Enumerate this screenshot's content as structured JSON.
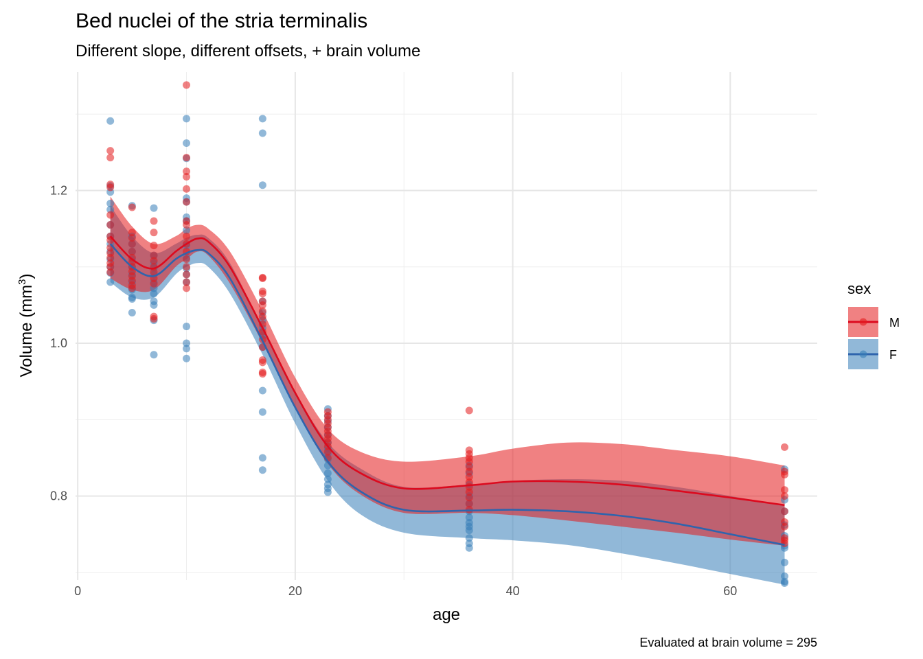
{
  "chart_data": {
    "type": "line",
    "title": "Bed nuclei of the stria terminalis",
    "subtitle": "Different slope, different offsets, + brain volume",
    "caption": "Evaluated at brain volume = 295",
    "xlabel": "age",
    "ylabel_main": "Volume (mm",
    "ylabel_sup": "3",
    "ylabel_end": ")",
    "xlim": [
      -0.2,
      68
    ],
    "ylim": [
      0.69,
      1.355
    ],
    "x_ticks": [
      0,
      20,
      40,
      60
    ],
    "y_ticks": [
      0.8,
      1.0,
      1.2
    ],
    "x_tick_labels": [
      "0",
      "20",
      "40",
      "60"
    ],
    "y_tick_labels": [
      "0.8",
      "1.0",
      "1.2"
    ],
    "grid": true,
    "legend": {
      "title": "sex",
      "position": "right",
      "entries": [
        "M",
        "F"
      ]
    },
    "colors": {
      "M": "#e41a1c",
      "F": "#377eb8",
      "M_line": "#dc0a1e",
      "F_line": "#2f64ad"
    },
    "series": [
      {
        "name": "M",
        "x": [
          3,
          5,
          7,
          9,
          10,
          11,
          12,
          14,
          17,
          20,
          23,
          26,
          30,
          36,
          40,
          45,
          50,
          55,
          60,
          65
        ],
        "fit": [
          1.14,
          1.11,
          1.098,
          1.12,
          1.13,
          1.137,
          1.133,
          1.1,
          1.02,
          0.935,
          0.865,
          0.83,
          0.81,
          0.814,
          0.819,
          0.819,
          0.815,
          0.807,
          0.798,
          0.788
        ],
        "lower": [
          1.085,
          1.07,
          1.07,
          1.1,
          1.11,
          1.12,
          1.115,
          1.078,
          1.0,
          0.915,
          0.842,
          0.802,
          0.778,
          0.778,
          0.775,
          0.768,
          0.76,
          0.752,
          0.743,
          0.735
        ],
        "upper": [
          1.192,
          1.153,
          1.13,
          1.14,
          1.15,
          1.155,
          1.15,
          1.12,
          1.042,
          0.955,
          0.888,
          0.858,
          0.845,
          0.852,
          0.862,
          0.87,
          0.868,
          0.86,
          0.852,
          0.84
        ],
        "points_x": [
          3,
          5,
          7,
          10,
          17,
          23,
          36,
          65
        ],
        "points": [
          [
            1.252,
            1.243,
            1.208,
            1.204,
            1.168,
            1.155,
            1.14,
            1.135,
            1.125,
            1.118,
            1.112,
            1.105,
            1.1,
            1.093
          ],
          [
            1.178,
            1.145,
            1.138,
            1.13,
            1.12,
            1.112,
            1.106,
            1.1,
            1.094,
            1.088,
            1.082,
            1.076,
            1.072
          ],
          [
            1.16,
            1.145,
            1.128,
            1.115,
            1.108,
            1.1,
            1.093,
            1.085,
            1.078,
            1.035,
            1.032
          ],
          [
            1.338,
            1.243,
            1.225,
            1.218,
            1.202,
            1.185,
            1.16,
            1.155,
            1.14,
            1.13,
            1.12,
            1.11,
            1.1,
            1.09,
            1.08,
            1.072
          ],
          [
            1.086,
            1.085,
            1.068,
            1.065,
            1.055,
            1.05,
            1.042,
            1.035,
            1.025,
            1.015,
            1.005,
            0.995,
            0.978,
            0.975,
            0.962,
            0.96
          ],
          [
            0.91,
            0.905,
            0.9,
            0.895,
            0.89,
            0.885,
            0.88,
            0.875,
            0.87,
            0.865,
            0.858,
            0.85
          ],
          [
            0.912,
            0.86,
            0.855,
            0.85,
            0.845,
            0.838,
            0.832,
            0.825,
            0.818,
            0.812,
            0.805,
            0.798,
            0.79,
            0.782
          ],
          [
            0.864,
            0.832,
            0.828,
            0.808,
            0.8,
            0.78,
            0.766,
            0.76,
            0.745,
            0.742,
            0.738
          ]
        ]
      },
      {
        "name": "F",
        "x": [
          3,
          5,
          7,
          9,
          10,
          11,
          12,
          14,
          17,
          20,
          23,
          26,
          30,
          36,
          40,
          45,
          50,
          55,
          60,
          65
        ],
        "fit": [
          1.13,
          1.1,
          1.088,
          1.11,
          1.118,
          1.122,
          1.118,
          1.085,
          1.003,
          0.916,
          0.845,
          0.806,
          0.782,
          0.781,
          0.782,
          0.78,
          0.774,
          0.764,
          0.75,
          0.736
        ],
        "lower": [
          1.08,
          1.06,
          1.06,
          1.09,
          1.1,
          1.105,
          1.1,
          1.065,
          0.985,
          0.895,
          0.82,
          0.776,
          0.752,
          0.745,
          0.742,
          0.736,
          0.725,
          0.712,
          0.698,
          0.684
        ],
        "upper": [
          1.18,
          1.14,
          1.118,
          1.13,
          1.138,
          1.142,
          1.138,
          1.105,
          1.02,
          0.936,
          0.87,
          0.836,
          0.812,
          0.815,
          0.82,
          0.822,
          0.82,
          0.812,
          0.8,
          0.788
        ],
        "points_x": [
          3,
          5,
          7,
          10,
          17,
          23,
          36,
          65
        ],
        "points": [
          [
            1.291,
            1.206,
            1.198,
            1.183,
            1.175,
            1.155,
            1.14,
            1.13,
            1.12,
            1.11,
            1.1,
            1.092,
            1.08
          ],
          [
            1.18,
            1.14,
            1.13,
            1.12,
            1.11,
            1.1,
            1.09,
            1.08,
            1.07,
            1.06,
            1.058,
            1.04
          ],
          [
            1.177,
            1.115,
            1.105,
            1.098,
            1.09,
            1.08,
            1.072,
            1.065,
            1.055,
            1.05,
            1.03,
            0.985
          ],
          [
            1.294,
            1.262,
            1.242,
            1.19,
            1.185,
            1.165,
            1.16,
            1.148,
            1.128,
            1.112,
            1.098,
            1.09,
            1.08,
            1.022,
            1.0,
            0.993,
            0.98
          ],
          [
            1.294,
            1.275,
            1.207,
            1.055,
            1.04,
            1.03,
            1.02,
            1.01,
            0.995,
            0.938,
            0.91,
            0.85,
            0.834
          ],
          [
            0.914,
            0.905,
            0.898,
            0.89,
            0.88,
            0.87,
            0.862,
            0.855,
            0.848,
            0.84,
            0.83,
            0.822,
            0.815,
            0.81,
            0.805
          ],
          [
            0.84,
            0.83,
            0.815,
            0.8,
            0.79,
            0.78,
            0.772,
            0.765,
            0.76,
            0.755,
            0.745,
            0.738,
            0.732
          ],
          [
            0.835,
            0.795,
            0.78,
            0.762,
            0.748,
            0.735,
            0.732,
            0.713,
            0.695,
            0.688,
            0.686
          ]
        ]
      }
    ]
  }
}
